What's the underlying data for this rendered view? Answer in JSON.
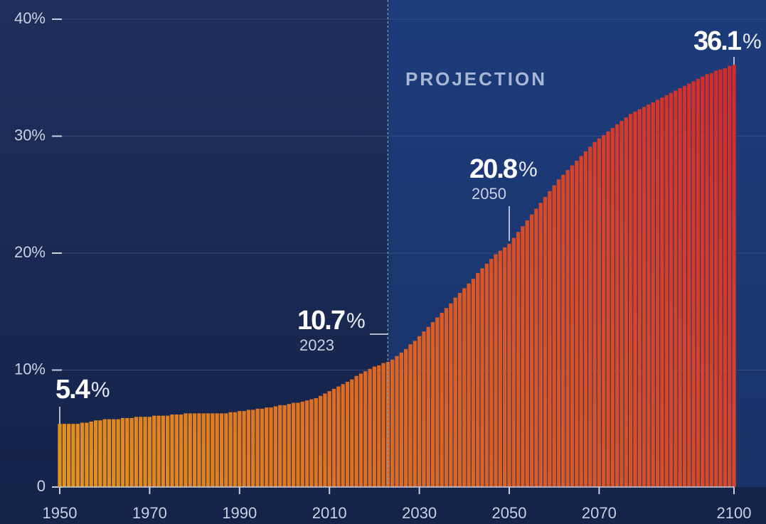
{
  "chart_data": {
    "type": "bar",
    "x": [
      1950,
      1951,
      1952,
      1953,
      1954,
      1955,
      1956,
      1957,
      1958,
      1959,
      1960,
      1961,
      1962,
      1963,
      1964,
      1965,
      1966,
      1967,
      1968,
      1969,
      1970,
      1971,
      1972,
      1973,
      1974,
      1975,
      1976,
      1977,
      1978,
      1979,
      1980,
      1981,
      1982,
      1983,
      1984,
      1985,
      1986,
      1987,
      1988,
      1989,
      1990,
      1991,
      1992,
      1993,
      1994,
      1995,
      1996,
      1997,
      1998,
      1999,
      2000,
      2001,
      2002,
      2003,
      2004,
      2005,
      2006,
      2007,
      2008,
      2009,
      2010,
      2011,
      2012,
      2013,
      2014,
      2015,
      2016,
      2017,
      2018,
      2019,
      2020,
      2021,
      2022,
      2023,
      2024,
      2025,
      2026,
      2027,
      2028,
      2029,
      2030,
      2031,
      2032,
      2033,
      2034,
      2035,
      2036,
      2037,
      2038,
      2039,
      2040,
      2041,
      2042,
      2043,
      2044,
      2045,
      2046,
      2047,
      2048,
      2049,
      2050,
      2051,
      2052,
      2053,
      2054,
      2055,
      2056,
      2057,
      2058,
      2059,
      2060,
      2061,
      2062,
      2063,
      2064,
      2065,
      2066,
      2067,
      2068,
      2069,
      2070,
      2071,
      2072,
      2073,
      2074,
      2075,
      2076,
      2077,
      2078,
      2079,
      2080,
      2081,
      2082,
      2083,
      2084,
      2085,
      2086,
      2087,
      2088,
      2089,
      2090,
      2091,
      2092,
      2093,
      2094,
      2095,
      2096,
      2097,
      2098,
      2099,
      2100
    ],
    "values": [
      5.4,
      5.4,
      5.4,
      5.4,
      5.4,
      5.5,
      5.5,
      5.6,
      5.7,
      5.7,
      5.8,
      5.8,
      5.8,
      5.8,
      5.9,
      5.9,
      5.9,
      6.0,
      6.0,
      6.0,
      6.0,
      6.1,
      6.1,
      6.1,
      6.1,
      6.2,
      6.2,
      6.2,
      6.3,
      6.3,
      6.3,
      6.3,
      6.3,
      6.3,
      6.3,
      6.3,
      6.3,
      6.3,
      6.4,
      6.4,
      6.5,
      6.5,
      6.6,
      6.6,
      6.7,
      6.7,
      6.8,
      6.8,
      6.9,
      7.0,
      7.0,
      7.1,
      7.2,
      7.2,
      7.3,
      7.4,
      7.5,
      7.6,
      7.8,
      8.0,
      8.2,
      8.4,
      8.6,
      8.8,
      9.0,
      9.2,
      9.5,
      9.7,
      9.9,
      10.1,
      10.3,
      10.4,
      10.6,
      10.7,
      10.9,
      11.2,
      11.5,
      11.8,
      12.2,
      12.5,
      12.9,
      13.3,
      13.7,
      14.1,
      14.5,
      14.9,
      15.3,
      15.7,
      16.2,
      16.6,
      17.0,
      17.4,
      17.8,
      18.3,
      18.7,
      19.1,
      19.5,
      19.9,
      20.2,
      20.5,
      20.8,
      21.3,
      21.8,
      22.3,
      22.8,
      23.3,
      23.8,
      24.3,
      24.8,
      25.3,
      25.8,
      26.3,
      26.7,
      27.1,
      27.5,
      27.9,
      28.3,
      28.7,
      29.1,
      29.5,
      29.8,
      30.1,
      30.4,
      30.7,
      31.0,
      31.3,
      31.6,
      31.9,
      32.1,
      32.3,
      32.5,
      32.7,
      32.9,
      33.1,
      33.3,
      33.5,
      33.7,
      33.9,
      34.1,
      34.3,
      34.5,
      34.7,
      34.9,
      35.1,
      35.3,
      35.4,
      35.6,
      35.7,
      35.8,
      36.0,
      36.1
    ],
    "color_start": "#e3921c",
    "color_end": "#d3292c",
    "xlim": [
      1950,
      2100
    ],
    "xticks": [
      1950,
      1970,
      1990,
      2010,
      2030,
      2050,
      2070,
      2100
    ],
    "ylim": [
      0,
      40
    ],
    "yticks": [
      0,
      {
        "value": 10,
        "label": "10%"
      },
      {
        "value": 20,
        "label": "20%"
      },
      {
        "value": 30,
        "label": "30%"
      },
      {
        "value": 40,
        "label": "40%"
      }
    ],
    "grid": true,
    "projection_start": 2023,
    "projection_label": "PROJECTION",
    "annotations": [
      {
        "x": 1950,
        "text": "5.4",
        "unit": "%"
      },
      {
        "x": 2023,
        "text": "10.7",
        "unit": "%",
        "sub": "2023"
      },
      {
        "x": 2050,
        "text": "20.8",
        "unit": "%",
        "sub": "2050"
      },
      {
        "x": 2100,
        "text": "36.1",
        "unit": "%"
      }
    ]
  }
}
